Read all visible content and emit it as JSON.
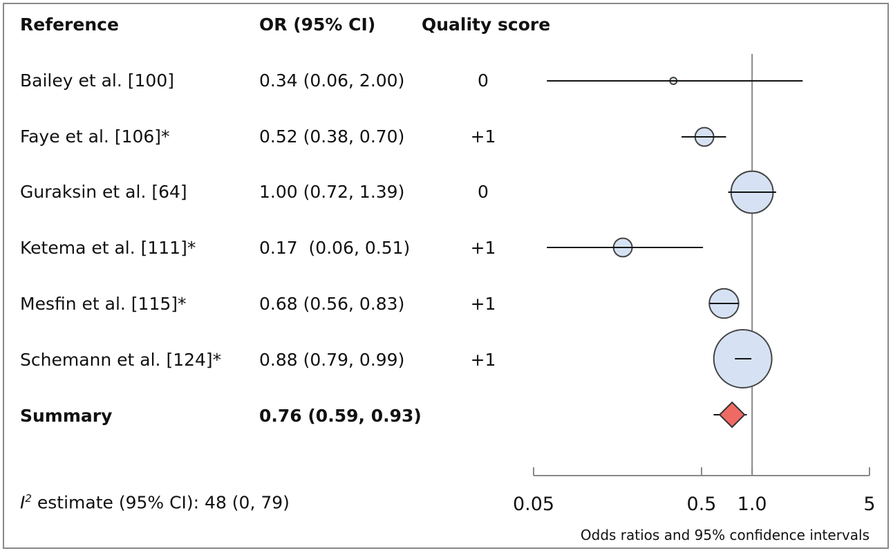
{
  "headers": {
    "reference": "Reference",
    "or": "OR (95% CI)",
    "quality": "Quality score"
  },
  "rows": [
    {
      "reference": "Bailey et al. [100]",
      "or_text": "0.34 (0.06, 2.00)",
      "quality": "0"
    },
    {
      "reference": "Faye et al. [106]*",
      "or_text": "0.52 (0.38, 0.70)",
      "quality": "+1"
    },
    {
      "reference": "Guraksin et al. [64]",
      "or_text": "1.00 (0.72, 1.39)",
      "quality": "0"
    },
    {
      "reference": "Ketema et al. [111]*",
      "or_text": "0.17  (0.06, 0.51)",
      "quality": "+1"
    },
    {
      "reference": "Mesfin et al. [115]*",
      "or_text": "0.68 (0.56, 0.83)",
      "quality": "+1"
    },
    {
      "reference": "Schemann et al. [124]*",
      "or_text": "0.88 (0.79, 0.99)",
      "quality": "+1"
    }
  ],
  "summary": {
    "reference": "Summary",
    "or_text": "0.76 (0.59, 0.93)"
  },
  "i2": {
    "symbol": "I",
    "superscript": "2",
    "text": " estimate (95% CI): 48 (0, 79)"
  },
  "chart_data": {
    "type": "forest",
    "scale": "log",
    "xlim": [
      0.05,
      5
    ],
    "reference_line": 1.0,
    "xlabel": "Odds ratios and 95% confidence intervals",
    "ticks": [
      {
        "value": 0.05,
        "label": "0.05"
      },
      {
        "value": 0.5,
        "label": "0.5"
      },
      {
        "value": 1.0,
        "label": "1.0"
      },
      {
        "value": 5,
        "label": "5"
      }
    ],
    "studies": [
      {
        "name": "Bailey et al. [100]",
        "or": 0.34,
        "lower": 0.06,
        "upper": 2.0,
        "weight": 0.4
      },
      {
        "name": "Faye et al. [106]*",
        "or": 0.52,
        "lower": 0.38,
        "upper": 0.7,
        "weight": 8
      },
      {
        "name": "Guraksin et al. [64]",
        "or": 1.0,
        "lower": 0.72,
        "upper": 1.39,
        "weight": 41
      },
      {
        "name": "Ketema et al. [111]*",
        "or": 0.17,
        "lower": 0.06,
        "upper": 0.51,
        "weight": 8
      },
      {
        "name": "Mesfin et al. [115]*",
        "or": 0.68,
        "lower": 0.56,
        "upper": 0.83,
        "weight": 20
      },
      {
        "name": "Schemann et al. [124]*",
        "or": 0.88,
        "lower": 0.79,
        "upper": 0.99,
        "weight": 78
      }
    ],
    "summary": {
      "or": 0.76,
      "lower": 0.59,
      "upper": 0.93
    },
    "colors": {
      "study_fill": "#d6e2f3",
      "study_stroke": "#444444",
      "summary_fill": "#f06a64",
      "summary_stroke": "#333333",
      "axis": "#888888"
    }
  }
}
